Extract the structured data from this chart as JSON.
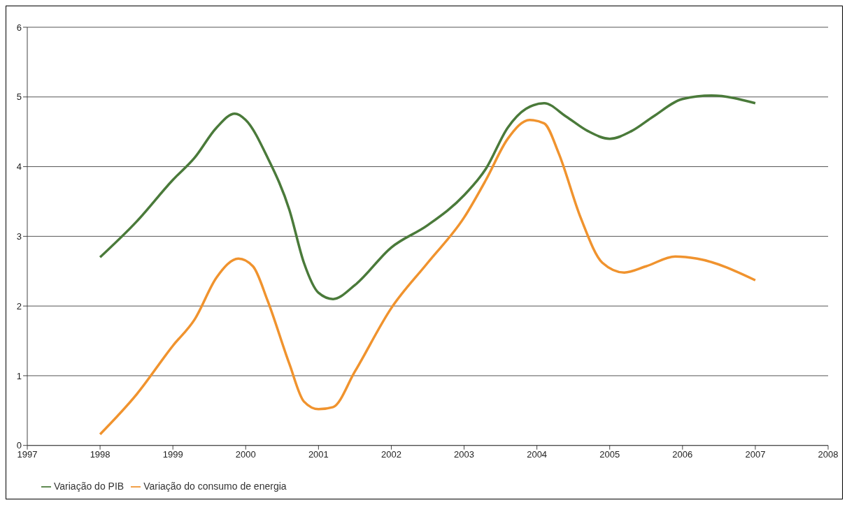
{
  "chart_data": {
    "type": "line",
    "xlim": [
      1997,
      2008
    ],
    "xticks": [
      1997,
      1998,
      1999,
      2000,
      2001,
      2002,
      2003,
      2004,
      2005,
      2006,
      2007,
      2008
    ],
    "ylim": [
      0,
      6
    ],
    "yticks": [
      0,
      1,
      2,
      3,
      4,
      5,
      6
    ],
    "grid": "y",
    "legend": "bottom left",
    "marker": "none",
    "line_style": "solid",
    "series": [
      {
        "name": "Variação do PIB",
        "color": "#4a7a3a",
        "x": [
          1998,
          1998.5,
          1999,
          1999.3,
          1999.6,
          1999.85,
          2000,
          2000.3,
          2000.6,
          2000.8,
          2001,
          2001.2,
          2001.5,
          2002,
          2002.5,
          2003,
          2003.3,
          2003.6,
          2003.85,
          2004.1,
          2004.4,
          2004.7,
          2005,
          2005.3,
          2005.6,
          2006,
          2006.4,
          2007
        ],
        "values": [
          2.7,
          3.21,
          3.81,
          4.13,
          4.56,
          4.76,
          4.67,
          4.13,
          3.38,
          2.62,
          2.19,
          2.1,
          2.3,
          2.84,
          3.16,
          3.59,
          3.97,
          4.56,
          4.83,
          4.91,
          4.72,
          4.51,
          4.4,
          4.51,
          4.72,
          4.97,
          5.02,
          4.91
        ]
      },
      {
        "name": "Variação do consumo de energia",
        "color": "#f0932e",
        "x": [
          1998,
          1998.5,
          1999,
          1999.3,
          1999.6,
          1999.9,
          2000.1,
          2000.3,
          2000.6,
          2000.8,
          2001,
          2001.2,
          2001.5,
          2002,
          2002.5,
          2003,
          2003.3,
          2003.6,
          2003.9,
          2004.1,
          2004.3,
          2004.6,
          2004.9,
          2005.2,
          2005.5,
          2005.9,
          2006.2,
          2007
        ],
        "values": [
          0.16,
          0.73,
          1.43,
          1.81,
          2.41,
          2.68,
          2.57,
          2.08,
          1.17,
          0.63,
          0.52,
          0.55,
          1.06,
          1.97,
          2.62,
          3.27,
          3.81,
          4.4,
          4.67,
          4.62,
          4.19,
          3.27,
          2.62,
          2.48,
          2.57,
          2.71,
          2.68,
          2.37
        ]
      }
    ]
  }
}
